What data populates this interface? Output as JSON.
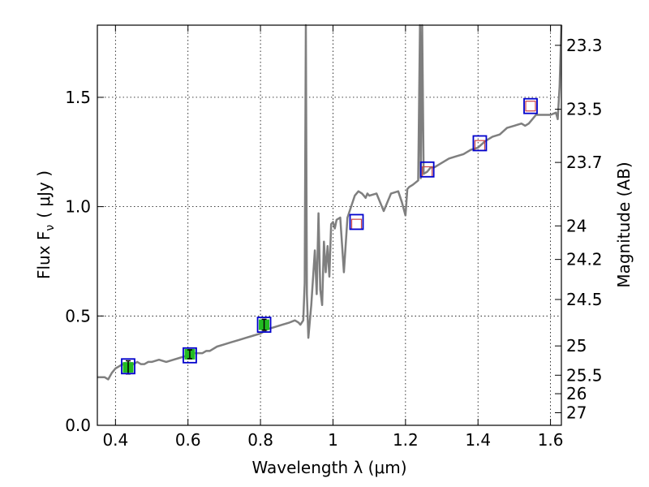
{
  "chart_data": {
    "type": "line",
    "title": "",
    "xlabel": "Wavelength  λ (μm)",
    "ylabel": "Flux  F",
    "ylabel_sub": "ν",
    "ylabel_unit": "( μJy )",
    "y2label": "Magnitude (AB)",
    "xlim": [
      0.35,
      1.63
    ],
    "ylim": [
      0.0,
      1.83
    ],
    "grid": true,
    "x_ticks": [
      0.4,
      0.6,
      0.8,
      1.0,
      1.2,
      1.4,
      1.6
    ],
    "x_tick_labels": [
      "0.4",
      "0.6",
      "0.8",
      "1",
      "1.2",
      "1.4",
      "1.6"
    ],
    "y_ticks": [
      0.0,
      0.5,
      1.0,
      1.5
    ],
    "y_tick_labels": [
      "0.0",
      "0.5",
      "1.0",
      "1.5"
    ],
    "y2_ticks": [
      23.3,
      23.5,
      23.7,
      24,
      24.2,
      24.5,
      25,
      25.5,
      26,
      27
    ],
    "y2_tick_labels": [
      "23.3",
      "23.5",
      "23.7",
      "24",
      "24.2",
      "24.5",
      "25",
      "25.5",
      "26",
      "27"
    ],
    "colors": {
      "spectrum": "#7f7f7f",
      "observed_fill": "#22bb22",
      "model_box": "#0000cc",
      "upper_marker": "#cc4444",
      "grid": "#000000"
    },
    "series": [
      {
        "kind": "model_spectrum",
        "x": [
          0.35,
          0.37,
          0.38,
          0.39,
          0.4,
          0.41,
          0.42,
          0.43,
          0.44,
          0.45,
          0.46,
          0.47,
          0.48,
          0.49,
          0.5,
          0.52,
          0.54,
          0.56,
          0.58,
          0.6,
          0.62,
          0.64,
          0.65,
          0.66,
          0.68,
          0.7,
          0.72,
          0.74,
          0.76,
          0.78,
          0.8,
          0.82,
          0.84,
          0.86,
          0.88,
          0.895,
          0.905,
          0.91,
          0.918,
          0.922,
          0.925,
          0.928,
          0.932,
          0.94,
          0.95,
          0.955,
          0.96,
          0.965,
          0.97,
          0.975,
          0.98,
          0.985,
          0.99,
          0.995,
          1.0,
          1.005,
          1.01,
          1.02,
          1.03,
          1.04,
          1.05,
          1.06,
          1.07,
          1.08,
          1.085,
          1.09,
          1.095,
          1.1,
          1.12,
          1.14,
          1.16,
          1.18,
          1.19,
          1.2,
          1.205,
          1.21,
          1.22,
          1.235,
          1.24,
          1.242,
          1.246,
          1.25,
          1.26,
          1.27,
          1.28,
          1.3,
          1.32,
          1.34,
          1.36,
          1.38,
          1.4,
          1.42,
          1.44,
          1.46,
          1.48,
          1.5,
          1.52,
          1.53,
          1.54,
          1.55,
          1.56,
          1.58,
          1.6,
          1.615,
          1.62,
          1.625,
          1.63
        ],
        "y": [
          0.22,
          0.22,
          0.21,
          0.24,
          0.26,
          0.27,
          0.28,
          0.26,
          0.27,
          0.28,
          0.29,
          0.28,
          0.28,
          0.29,
          0.29,
          0.3,
          0.29,
          0.3,
          0.31,
          0.32,
          0.33,
          0.33,
          0.34,
          0.34,
          0.36,
          0.37,
          0.38,
          0.39,
          0.4,
          0.41,
          0.42,
          0.44,
          0.45,
          0.46,
          0.47,
          0.48,
          0.47,
          0.46,
          0.48,
          0.65,
          1.83,
          0.6,
          0.4,
          0.55,
          0.8,
          0.6,
          0.97,
          0.62,
          0.55,
          0.84,
          0.7,
          0.82,
          0.68,
          0.92,
          0.93,
          0.9,
          0.94,
          0.95,
          0.7,
          0.95,
          1.0,
          1.05,
          1.07,
          1.06,
          1.05,
          1.04,
          1.06,
          1.05,
          1.06,
          0.98,
          1.06,
          1.07,
          1.02,
          0.96,
          1.08,
          1.09,
          1.1,
          1.12,
          1.83,
          1.13,
          1.83,
          1.15,
          1.16,
          1.18,
          1.18,
          1.2,
          1.22,
          1.23,
          1.24,
          1.26,
          1.27,
          1.3,
          1.32,
          1.33,
          1.36,
          1.37,
          1.38,
          1.37,
          1.38,
          1.4,
          1.42,
          1.42,
          1.42,
          1.43,
          1.4,
          1.55,
          1.83
        ]
      },
      {
        "kind": "model_photometry",
        "x": [
          0.435,
          0.605,
          0.81,
          1.065,
          1.26,
          1.405,
          1.545
        ],
        "y": [
          0.27,
          0.32,
          0.46,
          0.93,
          1.17,
          1.29,
          1.46
        ]
      },
      {
        "kind": "observed_photometry",
        "x": [
          0.435,
          0.605,
          0.81
        ],
        "y": [
          0.265,
          0.325,
          0.46
        ],
        "yerr": [
          0.03,
          0.02,
          0.025
        ]
      },
      {
        "kind": "observed_limits",
        "x": [
          1.065,
          1.26,
          1.405,
          1.545
        ],
        "y": [
          0.92,
          1.16,
          1.28,
          1.46
        ]
      }
    ]
  }
}
